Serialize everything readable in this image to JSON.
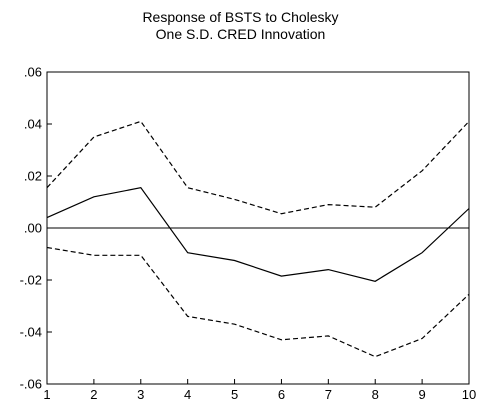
{
  "chart_data": {
    "type": "line",
    "title": [
      "Response of BSTS to Cholesky",
      "One S.D. CRED Innovation"
    ],
    "xlabel": "",
    "ylabel": "",
    "x": [
      1,
      2,
      3,
      4,
      5,
      6,
      7,
      8,
      9,
      10
    ],
    "x_ticks": [
      "1",
      "2",
      "3",
      "4",
      "5",
      "6",
      "7",
      "8",
      "9",
      "10"
    ],
    "y_ticks": [
      ".06",
      ".04",
      ".02",
      ".00",
      "-.02",
      "-.04",
      "-.06"
    ],
    "y_tick_values": [
      0.06,
      0.04,
      0.02,
      0.0,
      -0.02,
      -0.04,
      -0.06
    ],
    "ylim": [
      -0.06,
      0.06
    ],
    "xlim": [
      1,
      10
    ],
    "grid": false,
    "zero_line": true,
    "series": [
      {
        "style": "dashed",
        "values": [
          0.0155,
          0.035,
          0.041,
          0.0155,
          0.011,
          0.0055,
          0.009,
          0.008,
          0.022,
          0.041
        ]
      },
      {
        "style": "solid",
        "values": [
          0.004,
          0.012,
          0.0155,
          -0.0095,
          -0.0125,
          -0.0185,
          -0.016,
          -0.0205,
          -0.0095,
          0.0075
        ]
      },
      {
        "style": "dashed",
        "values": [
          -0.0075,
          -0.0105,
          -0.0105,
          -0.034,
          -0.037,
          -0.043,
          -0.0415,
          -0.0495,
          -0.0425,
          -0.0255
        ]
      }
    ],
    "colors": {
      "lines": "#000000",
      "axes": "#000000",
      "background": "#ffffff"
    }
  }
}
